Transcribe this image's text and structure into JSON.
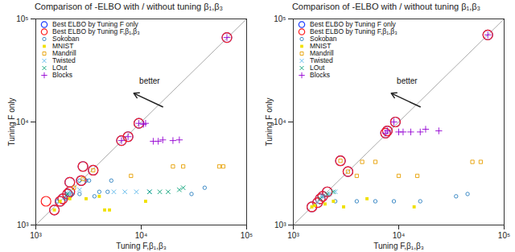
{
  "chart_data": [
    {
      "type": "scatter",
      "title": "Comparison of -ELBO with / without tuning β₁,β₃",
      "x_label": "Tuning F,β₁,β₃",
      "y_label": "Tuning F only",
      "log": true,
      "grid": false,
      "legend": "top-left",
      "xlim": [
        1000,
        100000
      ],
      "ylim": [
        1000,
        100000
      ],
      "xticks": [
        {
          "value": 1000,
          "label": "10³"
        },
        {
          "value": 10000,
          "label": "10⁴"
        },
        {
          "value": 100000,
          "label": "10⁵"
        }
      ],
      "yticks": [
        {
          "value": 1000,
          "label": "10³"
        },
        {
          "value": 10000,
          "label": "10⁴"
        },
        {
          "value": 100000,
          "label": "10⁵"
        }
      ],
      "reference_line": {
        "x": [
          1000,
          100000
        ],
        "values": [
          1000,
          100000
        ],
        "color": "#aaaaaa"
      },
      "annotations": [
        {
          "text": "better",
          "x": 12000,
          "y": 25000
        }
      ],
      "arrow": {
        "x1": 16000,
        "y1": 14000,
        "x2": 8500,
        "y2": 19000
      },
      "series": [
        {
          "name": "Best ELBO by Tuning F only",
          "color": "#1f3fff",
          "marker": "ring",
          "x": [
            1500,
            1700,
            1800,
            2000,
            2100,
            2100,
            2700,
            2800,
            3500,
            6500,
            7500,
            9500,
            65000
          ],
          "values": [
            1400,
            1700,
            1800,
            2000,
            2100,
            2600,
            2700,
            3700,
            3400,
            6600,
            7200,
            9700,
            66000
          ]
        },
        {
          "name": "Best ELBO by Tuning F,β₁,β₃",
          "color": "#ff2020",
          "marker": "ring",
          "x": [
            1250,
            1500,
            1700,
            1800,
            2000,
            2100,
            2100,
            2700,
            2800,
            3500,
            6500,
            7500,
            9500,
            65000
          ],
          "values": [
            1700,
            1400,
            1700,
            1800,
            2000,
            2100,
            2600,
            2700,
            3700,
            3400,
            6600,
            7200,
            9700,
            66000
          ]
        },
        {
          "name": "Sokoban",
          "color": "#2a7fc0",
          "marker": "circle",
          "x": [
            1600,
            1900,
            2200,
            2600,
            3000,
            3200,
            4000,
            5200,
            2000,
            2600,
            3600,
            4800,
            30000,
            40000
          ],
          "values": [
            1700,
            1800,
            2000,
            2700,
            2700,
            2700,
            2100,
            2700,
            2000,
            2000,
            1900,
            2100,
            2000,
            2300
          ]
        },
        {
          "name": "MNIST",
          "color": "#f0e000",
          "marker": "filled_square",
          "x": [
            1500,
            1700,
            2100,
            3000,
            4500,
            5000,
            11000,
            4000
          ],
          "values": [
            1400,
            1700,
            1800,
            1800,
            1400,
            1400,
            1700,
            1900
          ]
        },
        {
          "name": "Mandrill",
          "color": "#e69f00",
          "marker": "square",
          "x": [
            2800,
            3500,
            20000,
            25000,
            55000,
            60000,
            8000,
            2300
          ],
          "values": [
            2800,
            3400,
            3700,
            3700,
            3700,
            3700,
            3000,
            2300
          ]
        },
        {
          "name": "Twisted",
          "color": "#56b4e9",
          "marker": "times",
          "x": [
            2100,
            5500,
            7000,
            9000,
            12000,
            2600
          ],
          "values": [
            2100,
            2100,
            2100,
            2100,
            2100,
            2200
          ]
        },
        {
          "name": "LOut",
          "color": "#009e73",
          "marker": "times",
          "x": [
            2000,
            12000,
            15000,
            18000,
            23000,
            25000
          ],
          "values": [
            2000,
            2100,
            2100,
            2100,
            2200,
            2300
          ]
        },
        {
          "name": "Blocks",
          "color": "#9400d3",
          "marker": "plus",
          "x": [
            6500,
            7500,
            9500,
            11000,
            13000,
            14500,
            16000,
            20000,
            23000,
            10500,
            65000
          ],
          "values": [
            6600,
            7200,
            9700,
            9700,
            6500,
            6500,
            6700,
            6600,
            6700,
            9500,
            66000
          ]
        }
      ]
    },
    {
      "type": "scatter",
      "title": "Comparison of -ELBO with / without tuning β₁,β₃",
      "x_label": "Tuning F,β₁,β₃",
      "y_label": "Tuning F only",
      "log": true,
      "grid": false,
      "legend": "top-left",
      "xlim": [
        1000,
        100000
      ],
      "ylim": [
        1000,
        100000
      ],
      "xticks": [
        {
          "value": 1000,
          "label": "10³"
        },
        {
          "value": 10000,
          "label": "10⁴"
        },
        {
          "value": 100000,
          "label": "10⁵"
        }
      ],
      "yticks": [
        {
          "value": 1000,
          "label": "10³"
        },
        {
          "value": 10000,
          "label": "10⁴"
        },
        {
          "value": 100000,
          "label": "10⁵"
        }
      ],
      "reference_line": {
        "x": [
          1000,
          100000
        ],
        "values": [
          1000,
          100000
        ],
        "color": "#aaaaaa"
      },
      "annotations": [
        {
          "text": "better",
          "x": 12000,
          "y": 25000
        }
      ],
      "arrow": {
        "x1": 16000,
        "y1": 14000,
        "x2": 8500,
        "y2": 19000
      },
      "series": [
        {
          "name": "Best ELBO by Tuning F only",
          "color": "#1f3fff",
          "marker": "ring",
          "x": [
            1500,
            1700,
            1800,
            1900,
            2100,
            2800,
            3300,
            7500,
            7800,
            9300,
            70000
          ],
          "values": [
            1500,
            1650,
            1800,
            1900,
            2100,
            4200,
            3300,
            7800,
            8200,
            10000,
            70000
          ]
        },
        {
          "name": "Best ELBO by Tuning F,β₁,β₃",
          "color": "#ff2020",
          "marker": "ring",
          "x": [
            1500,
            1700,
            1800,
            1900,
            2100,
            2800,
            3300,
            7500,
            7800,
            9300,
            70000
          ],
          "values": [
            1500,
            1650,
            1800,
            1900,
            2100,
            4200,
            3300,
            7800,
            8200,
            10000,
            70000
          ]
        },
        {
          "name": "Sokoban",
          "color": "#2a7fc0",
          "marker": "circle",
          "x": [
            2500,
            4000,
            6000,
            9000,
            16000,
            35000,
            45000,
            1900
          ],
          "values": [
            1700,
            1700,
            1700,
            1700,
            1700,
            1900,
            2000,
            1900
          ]
        },
        {
          "name": "MNIST",
          "color": "#f0e000",
          "marker": "filled_square",
          "x": [
            1500,
            1600,
            2000,
            2400,
            3000,
            5000,
            14000
          ],
          "values": [
            1500,
            1550,
            1600,
            1700,
            1500,
            1800,
            1500
          ]
        },
        {
          "name": "Mandrill",
          "color": "#e69f00",
          "marker": "square",
          "x": [
            2800,
            3300,
            4500,
            6000,
            10000,
            15000,
            50000,
            60000,
            4000
          ],
          "values": [
            4200,
            3300,
            4100,
            4100,
            3000,
            3000,
            4100,
            4100,
            3000
          ]
        },
        {
          "name": "Twisted",
          "color": "#56b4e9",
          "marker": "times",
          "x": [
            1700,
            1900,
            2200,
            2500
          ],
          "values": [
            1650,
            1900,
            2000,
            2100
          ]
        },
        {
          "name": "LOut",
          "color": "#009e73",
          "marker": "times",
          "x": [
            1800,
            2100,
            2400
          ],
          "values": [
            1800,
            2000,
            2100
          ]
        },
        {
          "name": "Blocks",
          "color": "#9400d3",
          "marker": "plus",
          "x": [
            7500,
            7800,
            9000,
            10000,
            11000,
            13000,
            16000,
            18000,
            24000,
            70000
          ],
          "values": [
            7800,
            8200,
            10000,
            8000,
            8000,
            8000,
            8000,
            8500,
            8200,
            70000
          ]
        }
      ]
    }
  ]
}
